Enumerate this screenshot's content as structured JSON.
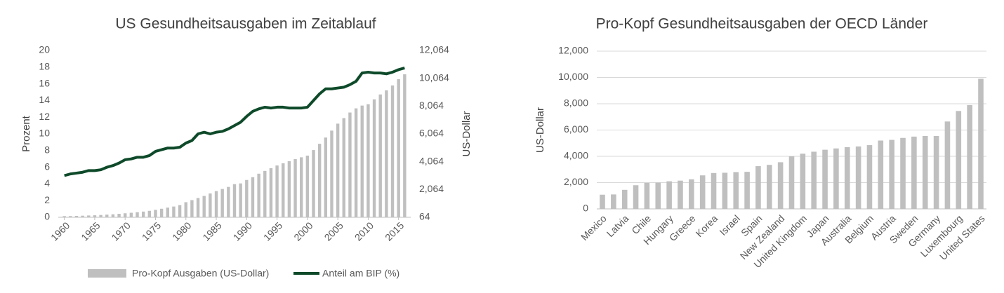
{
  "chart_data": [
    {
      "type": "combo",
      "title": "US Gesundheitsausgaben  im Zeitablauf",
      "ylabel": "Prozent",
      "y2label": "US-Dollar",
      "x": [
        1960,
        1961,
        1962,
        1963,
        1964,
        1965,
        1966,
        1967,
        1968,
        1969,
        1970,
        1971,
        1972,
        1973,
        1974,
        1975,
        1976,
        1977,
        1978,
        1979,
        1980,
        1981,
        1982,
        1983,
        1984,
        1985,
        1986,
        1987,
        1988,
        1989,
        1990,
        1991,
        1992,
        1993,
        1994,
        1995,
        1996,
        1997,
        1998,
        1999,
        2000,
        2001,
        2002,
        2003,
        2004,
        2005,
        2006,
        2007,
        2008,
        2009,
        2010,
        2011,
        2012,
        2013,
        2014,
        2015,
        2016
      ],
      "xlim": [
        1959,
        2017
      ],
      "xticks": [
        1960,
        1965,
        1970,
        1975,
        1980,
        1985,
        1990,
        1995,
        2000,
        2005,
        2010,
        2015
      ],
      "ylim": [
        0,
        20
      ],
      "yticks": [
        0,
        2,
        4,
        6,
        8,
        10,
        12,
        14,
        16,
        18,
        20
      ],
      "y2lim": [
        64,
        12064
      ],
      "y2ticks": [
        64,
        {
          "value": 2064,
          "label": "2,064"
        },
        {
          "value": 4064,
          "label": "4,064"
        },
        {
          "value": 6064,
          "label": "6,064"
        },
        {
          "value": 8064,
          "label": "8,064"
        },
        {
          "value": 10064,
          "label": "10,064"
        },
        {
          "value": 12064,
          "label": "12,064"
        }
      ],
      "legend": "bottom",
      "series": [
        {
          "name": "Pro-Kopf Ausgaben (US-Dollar)",
          "type": "bar",
          "axis": "y2",
          "color": "#bfbfbf",
          "values": [
            150,
            155,
            165,
            180,
            195,
            210,
            230,
            255,
            280,
            315,
            355,
            390,
            430,
            475,
            530,
            600,
            680,
            760,
            840,
            940,
            1150,
            1300,
            1450,
            1600,
            1780,
            1950,
            2100,
            2250,
            2450,
            2500,
            2750,
            2950,
            3200,
            3400,
            3600,
            3790,
            3950,
            4100,
            4250,
            4380,
            4500,
            4900,
            5350,
            5800,
            6300,
            6800,
            7200,
            7600,
            7900,
            8100,
            8200,
            8550,
            8900,
            9200,
            9550,
            10000,
            10350
          ]
        },
        {
          "name": "Anteil am BIP (%)",
          "type": "line",
          "color": "#0e4a2a",
          "values": [
            5.0,
            5.2,
            5.3,
            5.4,
            5.6,
            5.6,
            5.7,
            6.0,
            6.2,
            6.5,
            6.9,
            7.0,
            7.2,
            7.2,
            7.4,
            7.9,
            8.1,
            8.3,
            8.3,
            8.4,
            8.9,
            9.2,
            10.0,
            10.2,
            10.0,
            10.2,
            10.3,
            10.6,
            11.0,
            11.4,
            12.1,
            12.7,
            13.0,
            13.2,
            13.1,
            13.2,
            13.2,
            13.1,
            13.1,
            13.1,
            13.2,
            14.0,
            14.8,
            15.4,
            15.4,
            15.5,
            15.6,
            15.9,
            16.3,
            17.3,
            17.4,
            17.3,
            17.3,
            17.2,
            17.4,
            17.7,
            17.9
          ]
        }
      ]
    },
    {
      "type": "bar",
      "title": "Pro-Kopf Gesundheitsausgaben  der OECD Länder",
      "ylabel": "US-Dollar",
      "categories": [
        "Mexico",
        null,
        "Latvia",
        null,
        "Chile",
        null,
        "Hungary",
        null,
        "Greece",
        null,
        "Korea",
        null,
        "Israel",
        null,
        "Spain",
        null,
        "New Zealand",
        null,
        "United Kingdom",
        null,
        "Japan",
        null,
        "Australia",
        null,
        "Belgium",
        null,
        "Austria",
        null,
        "Sweden",
        null,
        "Germany",
        null,
        "Luxembourg",
        null,
        "United States"
      ],
      "values": [
        1080,
        1100,
        1450,
        1800,
        1980,
        2000,
        2100,
        2150,
        2250,
        2550,
        2730,
        2750,
        2800,
        2820,
        3250,
        3350,
        3550,
        4000,
        4200,
        4350,
        4500,
        4600,
        4700,
        4750,
        4850,
        5200,
        5250,
        5400,
        5500,
        5550,
        5550,
        6650,
        7450,
        7900,
        9900
      ],
      "color": "#bfbfbf",
      "grid": true,
      "ylim": [
        0,
        12000
      ],
      "yticks": [
        0,
        {
          "value": 2000,
          "label": "2,000"
        },
        {
          "value": 4000,
          "label": "4,000"
        },
        {
          "value": 6000,
          "label": "6,000"
        },
        {
          "value": 8000,
          "label": "8,000"
        },
        {
          "value": 10000,
          "label": "10,000"
        },
        {
          "value": 12000,
          "label": "12,000"
        }
      ]
    }
  ]
}
